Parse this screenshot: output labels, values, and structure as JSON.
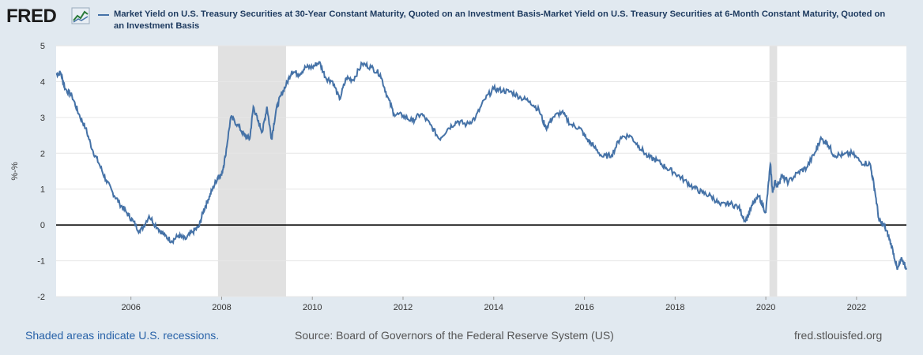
{
  "header": {
    "logo_text": "FRED",
    "legend_label": "Market Yield on U.S. Treasury Securities at 30-Year Constant Maturity, Quoted on an Investment Basis-Market Yield on U.S. Treasury Securities at 6-Month Constant Maturity, Quoted on an Investment Basis",
    "series_color": "#4572a7"
  },
  "footer": {
    "recessions_note": "Shaded areas indicate U.S. recessions.",
    "source": "Source: Board of Governors of the Federal Reserve System (US)",
    "site": "fred.stlouisfed.org"
  },
  "colors": {
    "background": "#e1e9f0",
    "plot_background": "#ffffff",
    "recession_shade": "#e1e1e1",
    "zero_line": "#000000"
  },
  "chart_data": {
    "type": "line",
    "title": "",
    "xlabel": "",
    "ylabel": "%-%",
    "xlim": [
      2004.35,
      2023.1
    ],
    "ylim": [
      -2,
      5
    ],
    "y_ticks": [
      "-2",
      "-1",
      "0",
      "1",
      "2",
      "3",
      "4",
      "5"
    ],
    "x_ticks": [
      "2006",
      "2008",
      "2010",
      "2012",
      "2014",
      "2016",
      "2018",
      "2020",
      "2022"
    ],
    "grid": "horizontal",
    "reference_line": 0,
    "recessions": [
      [
        2007.92,
        2009.42
      ],
      [
        2020.08,
        2020.25
      ]
    ],
    "series": [
      {
        "name": "Market Yield on U.S. Treasury Securities at 30-Year Constant Maturity, Quoted on an Investment Basis-Market Yield on U.S. Treasury Securities at 6-Month Constant Maturity, Quoted on an Investment Basis",
        "x": [
          2004.35,
          2004.45,
          2004.55,
          2004.7,
          2004.85,
          2005.0,
          2005.15,
          2005.3,
          2005.45,
          2005.6,
          2005.75,
          2005.9,
          2006.05,
          2006.2,
          2006.4,
          2006.6,
          2006.75,
          2006.9,
          2007.05,
          2007.2,
          2007.35,
          2007.5,
          2007.6,
          2007.7,
          2007.8,
          2007.92,
          2008.0,
          2008.08,
          2008.2,
          2008.35,
          2008.5,
          2008.62,
          2008.7,
          2008.8,
          2008.9,
          2009.0,
          2009.1,
          2009.2,
          2009.3,
          2009.42,
          2009.55,
          2009.7,
          2009.85,
          2010.0,
          2010.15,
          2010.3,
          2010.45,
          2010.6,
          2010.75,
          2010.9,
          2011.1,
          2011.3,
          2011.5,
          2011.65,
          2011.8,
          2012.0,
          2012.2,
          2012.4,
          2012.6,
          2012.8,
          2013.0,
          2013.2,
          2013.4,
          2013.6,
          2013.8,
          2014.0,
          2014.2,
          2014.4,
          2014.6,
          2014.8,
          2015.0,
          2015.15,
          2015.3,
          2015.5,
          2015.7,
          2015.9,
          2016.05,
          2016.2,
          2016.4,
          2016.6,
          2016.8,
          2017.0,
          2017.2,
          2017.4,
          2017.6,
          2017.8,
          2018.0,
          2018.2,
          2018.4,
          2018.6,
          2018.8,
          2019.0,
          2019.2,
          2019.4,
          2019.55,
          2019.7,
          2019.85,
          2020.0,
          2020.1,
          2020.15,
          2020.2,
          2020.25,
          2020.35,
          2020.5,
          2020.7,
          2020.9,
          2021.1,
          2021.2,
          2021.35,
          2021.5,
          2021.7,
          2021.9,
          2022.1,
          2022.3,
          2022.4,
          2022.5,
          2022.6,
          2022.7,
          2022.8,
          2022.9,
          2023.0,
          2023.1
        ],
        "y": [
          4.2,
          4.25,
          3.8,
          3.6,
          3.1,
          2.7,
          2.1,
          1.7,
          1.25,
          0.9,
          0.6,
          0.35,
          0.1,
          -0.2,
          0.25,
          -0.1,
          -0.3,
          -0.45,
          -0.3,
          -0.4,
          -0.2,
          -0.05,
          0.4,
          0.7,
          1.0,
          1.35,
          1.4,
          1.9,
          3.0,
          2.8,
          2.5,
          2.4,
          3.3,
          2.9,
          2.6,
          3.3,
          2.4,
          3.2,
          3.6,
          3.9,
          4.3,
          4.2,
          4.4,
          4.4,
          4.55,
          4.1,
          4.0,
          3.5,
          4.1,
          4.05,
          4.5,
          4.4,
          4.2,
          3.6,
          3.1,
          3.05,
          2.9,
          3.1,
          2.8,
          2.4,
          2.7,
          2.9,
          2.8,
          3.0,
          3.5,
          3.8,
          3.75,
          3.7,
          3.55,
          3.45,
          3.2,
          2.7,
          3.0,
          3.15,
          2.8,
          2.7,
          2.4,
          2.2,
          1.9,
          1.95,
          2.45,
          2.5,
          2.2,
          1.9,
          1.8,
          1.6,
          1.45,
          1.25,
          1.05,
          0.9,
          0.8,
          0.55,
          0.6,
          0.5,
          0.1,
          0.55,
          0.8,
          0.35,
          1.7,
          0.9,
          1.2,
          1.1,
          1.35,
          1.2,
          1.45,
          1.6,
          2.05,
          2.4,
          2.3,
          1.95,
          1.95,
          2.0,
          1.75,
          1.7,
          1.0,
          0.1,
          0.0,
          -0.3,
          -0.7,
          -1.25,
          -0.95,
          -1.2
        ]
      }
    ]
  }
}
